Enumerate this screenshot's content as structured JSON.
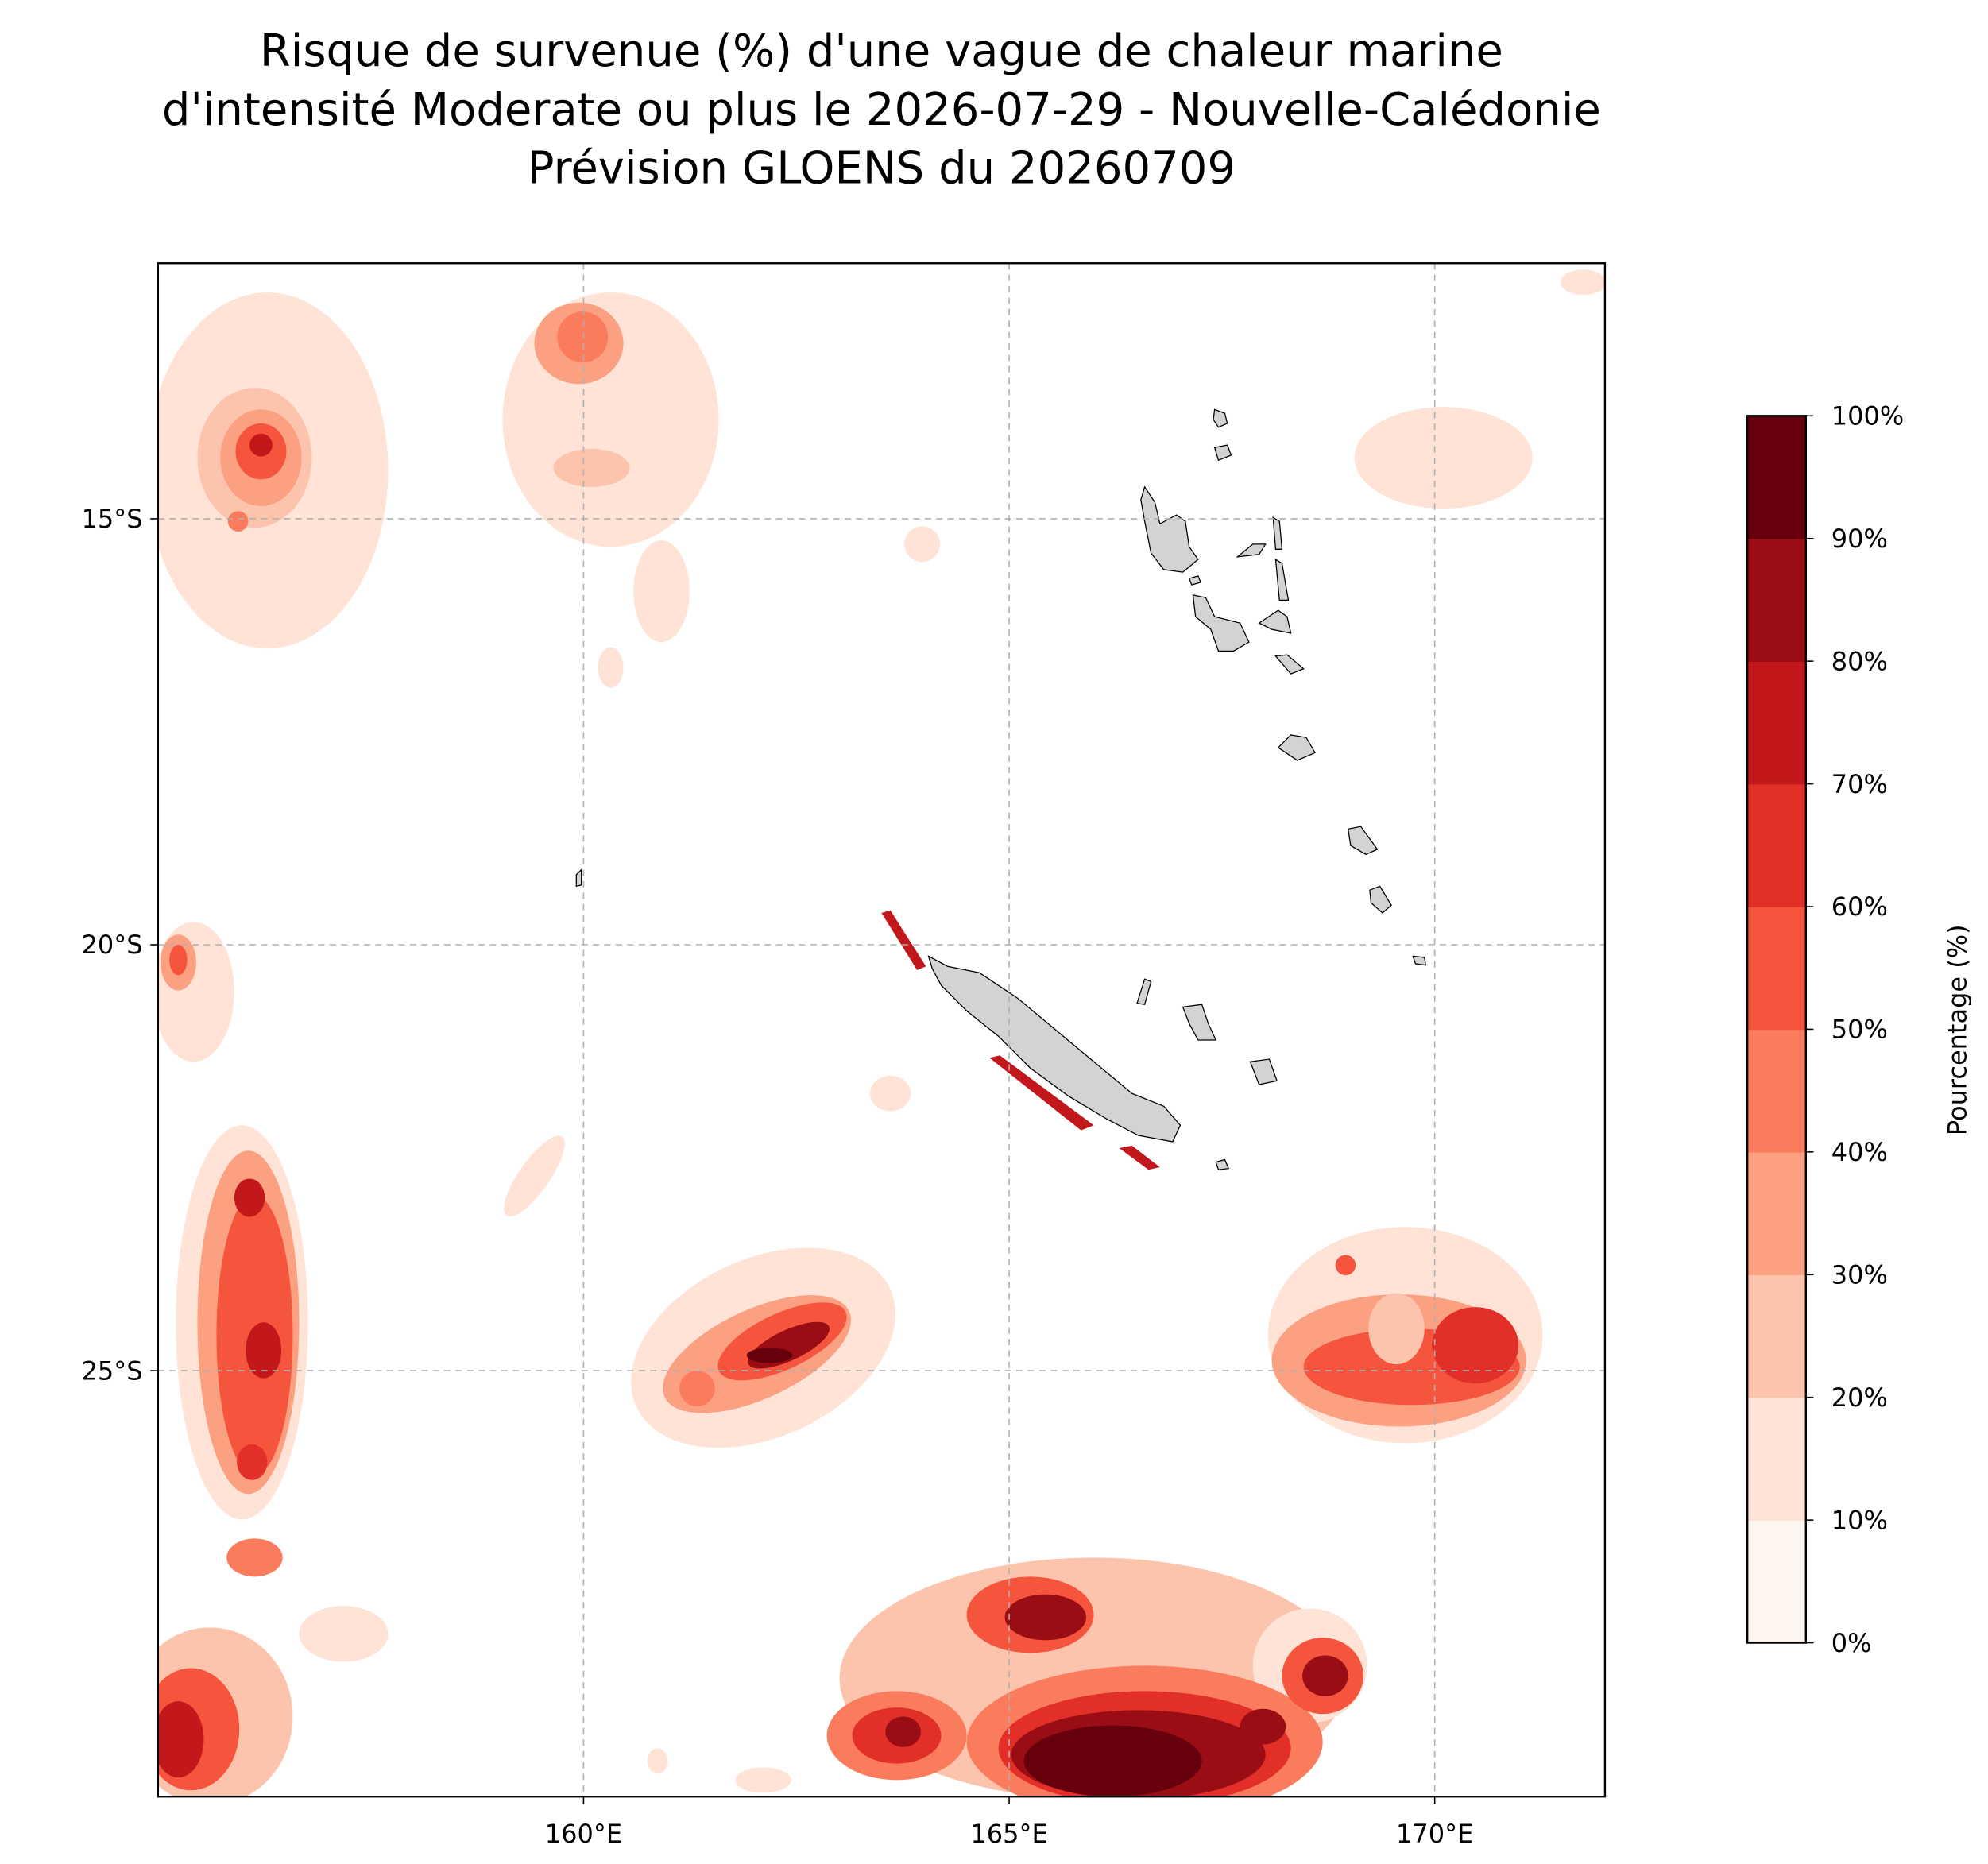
{
  "chart_data": {
    "type": "map",
    "title": [
      "Risque de survenue (%) d'une vague de chaleur marine",
      "d'intensité Moderate ou plus le 2026-07-29 - Nouvelle-Calédonie",
      "Prévision GLOENS du 20260709"
    ],
    "xlim": [
      155,
      172
    ],
    "ylim": [
      -30,
      -12
    ],
    "xticks": [
      {
        "value": 160,
        "label": "160°E"
      },
      {
        "value": 165,
        "label": "165°E"
      },
      {
        "value": 170,
        "label": "170°E"
      }
    ],
    "yticks": [
      {
        "value": -15,
        "label": "15°S"
      },
      {
        "value": -20,
        "label": "20°S"
      },
      {
        "value": -25,
        "label": "25°S"
      }
    ],
    "grid": true,
    "colorbar": {
      "label": "Pourcentage (%)",
      "lim": [
        0,
        100
      ],
      "ticks": [
        {
          "value": 0,
          "label": "0%"
        },
        {
          "value": 10,
          "label": "10%"
        },
        {
          "value": 20,
          "label": "20%"
        },
        {
          "value": 30,
          "label": "30%"
        },
        {
          "value": 40,
          "label": "40%"
        },
        {
          "value": 50,
          "label": "50%"
        },
        {
          "value": 60,
          "label": "60%"
        },
        {
          "value": 70,
          "label": "70%"
        },
        {
          "value": 80,
          "label": "80%"
        },
        {
          "value": 90,
          "label": "90%"
        },
        {
          "value": 100,
          "label": "100%"
        }
      ],
      "colors": [
        "#fff5f0",
        "#fee3d6",
        "#fcc4ad",
        "#fca082",
        "#fb7c5c",
        "#f5553d",
        "#e23028",
        "#c2181b",
        "#9b0d14",
        "#67000d"
      ]
    }
  }
}
